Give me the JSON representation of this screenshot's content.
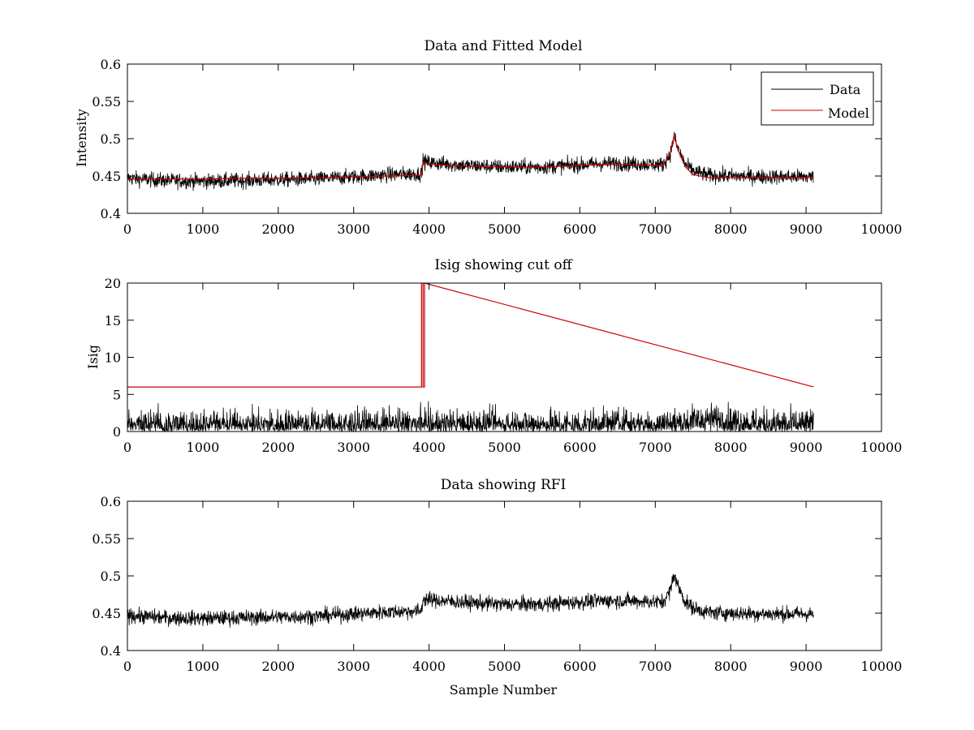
{
  "chart_data": [
    {
      "type": "line",
      "title": "Data and Fitted Model",
      "xlabel": "",
      "ylabel": "Intensity",
      "xlim": [
        0,
        10000
      ],
      "ylim": [
        0.4,
        0.6
      ],
      "x_ticks": [
        0,
        1000,
        2000,
        3000,
        4000,
        5000,
        6000,
        7000,
        8000,
        9000,
        10000
      ],
      "y_ticks": [
        0.4,
        0.45,
        0.5,
        0.55,
        0.6
      ],
      "y_tick_labels": [
        "0.4",
        "0.45",
        "0.5",
        "0.55",
        "0.6"
      ],
      "legend_position": "top-right",
      "grid": false,
      "series": [
        {
          "name": "Data",
          "color": "#000000",
          "noisy": true,
          "x": [
            0,
            500,
            1000,
            1500,
            2000,
            2500,
            3000,
            3500,
            3900,
            3920,
            3950,
            4000,
            4500,
            5000,
            5500,
            6000,
            6400,
            6800,
            7100,
            7200,
            7250,
            7300,
            7400,
            7500,
            7700,
            8000,
            8500,
            9100
          ],
          "y": [
            0.447,
            0.444,
            0.443,
            0.444,
            0.445,
            0.446,
            0.449,
            0.452,
            0.453,
            0.47,
            0.469,
            0.468,
            0.464,
            0.462,
            0.462,
            0.465,
            0.467,
            0.466,
            0.465,
            0.48,
            0.503,
            0.487,
            0.465,
            0.457,
            0.451,
            0.45,
            0.449,
            0.449
          ],
          "noise_amplitude": 0.005
        },
        {
          "name": "Model",
          "color": "#cc0000",
          "x": [
            0,
            500,
            1000,
            1500,
            2000,
            2500,
            3000,
            3500,
            3900,
            3920,
            3950,
            4000,
            4500,
            5000,
            5500,
            6000,
            6400,
            6800,
            7100,
            7200,
            7250,
            7300,
            7400,
            7500,
            7700,
            8000,
            8500,
            9100
          ],
          "y": [
            0.446,
            0.446,
            0.446,
            0.447,
            0.447,
            0.448,
            0.449,
            0.45,
            0.451,
            0.468,
            0.467,
            0.466,
            0.463,
            0.462,
            0.462,
            0.464,
            0.466,
            0.465,
            0.464,
            0.48,
            0.505,
            0.485,
            0.462,
            0.452,
            0.448,
            0.448,
            0.448,
            0.448
          ]
        }
      ]
    },
    {
      "type": "line",
      "title": "Isig showing cut off",
      "xlabel": "",
      "ylabel": "Isig",
      "xlim": [
        0,
        10000
      ],
      "ylim": [
        0,
        20
      ],
      "x_ticks": [
        0,
        1000,
        2000,
        3000,
        4000,
        5000,
        6000,
        7000,
        8000,
        9000,
        10000
      ],
      "y_ticks": [
        0,
        5,
        10,
        15,
        20
      ],
      "y_tick_labels": [
        "0",
        "5",
        "10",
        "15",
        "20"
      ],
      "grid": false,
      "series": [
        {
          "color": "#000000",
          "noisy": true,
          "rectified": true,
          "x": [
            0,
            3000,
            7000,
            7500,
            7700,
            8000,
            8500,
            9100
          ],
          "y": [
            0.8,
            0.8,
            0.8,
            1.3,
            1.6,
            1.3,
            0.8,
            0.8
          ],
          "noise_amplitude": 1.1
        },
        {
          "color": "#cc0000",
          "x": [
            0,
            3900,
            3900,
            3920,
            3920,
            3940,
            3940,
            9100
          ],
          "y": [
            6,
            6,
            20,
            20,
            6,
            6,
            20,
            6
          ]
        }
      ]
    },
    {
      "type": "line",
      "title": "Data showing RFI",
      "xlabel": "Sample Number",
      "ylabel": "",
      "xlim": [
        0,
        10000
      ],
      "ylim": [
        0.4,
        0.6
      ],
      "x_ticks": [
        0,
        1000,
        2000,
        3000,
        4000,
        5000,
        6000,
        7000,
        8000,
        9000,
        10000
      ],
      "y_ticks": [
        0.4,
        0.45,
        0.5,
        0.55,
        0.6
      ],
      "y_tick_labels": [
        "0.4",
        "0.45",
        "0.5",
        "0.55",
        "0.6"
      ],
      "grid": false,
      "series": [
        {
          "color": "#000000",
          "noisy": true,
          "x": [
            0,
            500,
            1000,
            1500,
            2000,
            2500,
            3000,
            3500,
            3900,
            3920,
            3950,
            4000,
            4500,
            5000,
            5500,
            6000,
            6400,
            6800,
            7100,
            7200,
            7250,
            7300,
            7400,
            7500,
            7700,
            8000,
            8500,
            9100
          ],
          "y": [
            0.447,
            0.444,
            0.443,
            0.444,
            0.445,
            0.446,
            0.449,
            0.452,
            0.453,
            0.47,
            0.469,
            0.468,
            0.464,
            0.462,
            0.462,
            0.465,
            0.467,
            0.466,
            0.465,
            0.48,
            0.503,
            0.487,
            0.465,
            0.457,
            0.451,
            0.45,
            0.449,
            0.449
          ],
          "noise_amplitude": 0.005
        }
      ]
    }
  ]
}
